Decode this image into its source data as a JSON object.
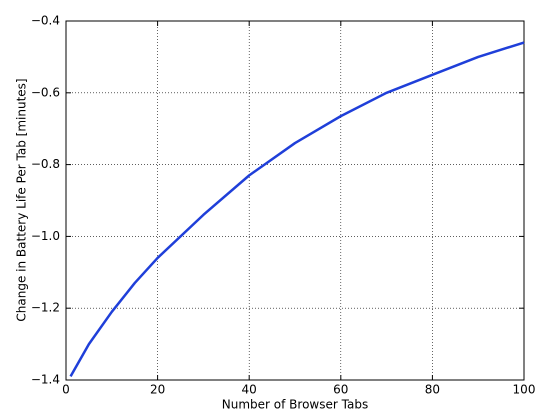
{
  "chart_data": {
    "type": "line",
    "x_label": "Number of Browser Tabs",
    "y_label": "Change in Battery Life Per Tab [minutes]",
    "x": [
      1,
      5,
      10,
      15,
      20,
      30,
      40,
      50,
      60,
      70,
      80,
      90,
      100
    ],
    "values": [
      -1.39,
      -1.3,
      -1.21,
      -1.13,
      -1.06,
      -0.94,
      -0.83,
      -0.74,
      -0.665,
      -0.6,
      -0.55,
      -0.5,
      -0.46
    ],
    "color": "#1f3fd9",
    "xlim": [
      0,
      100
    ],
    "xticks": [
      0,
      20,
      40,
      60,
      80,
      100
    ],
    "ylim": [
      -1.4,
      -0.4
    ],
    "yticks": [
      {
        "value": -1.4,
        "label": "−1.4"
      },
      {
        "value": -1.2,
        "label": "−1.2"
      },
      {
        "value": -1.0,
        "label": "−1.0"
      },
      {
        "value": -0.8,
        "label": "−0.8"
      },
      {
        "value": -0.6,
        "label": "−0.6"
      },
      {
        "value": -0.4,
        "label": "−0.4"
      }
    ],
    "grid": true
  }
}
